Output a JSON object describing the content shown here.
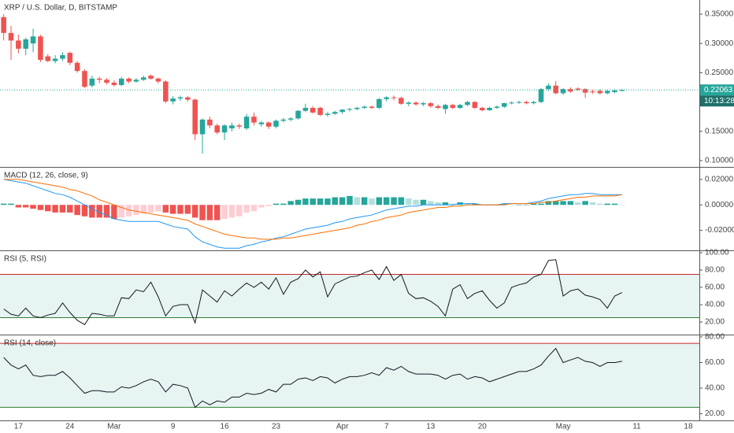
{
  "chart_data": [
    {
      "type": "candlestick",
      "title": "XRP / U.S. Dollar, D, BITSTAMP",
      "countdown": "10:13:28",
      "up_color": "#26a69a",
      "down_color": "#ef5350",
      "categories": [
        null,
        null,
        "17",
        null,
        null,
        null,
        null,
        null,
        null,
        "24",
        null,
        null,
        null,
        null,
        null,
        "Mar",
        null,
        null,
        null,
        null,
        null,
        null,
        null,
        "9",
        null,
        null,
        null,
        null,
        null,
        null,
        "16",
        null,
        null,
        null,
        null,
        null,
        null,
        "23",
        null,
        null,
        null,
        null,
        null,
        null,
        null,
        null,
        "Apr",
        null,
        null,
        null,
        null,
        null,
        "7",
        null,
        null,
        null,
        null,
        null,
        "13",
        null,
        null,
        null,
        null,
        null,
        null,
        "20",
        null,
        null,
        null,
        null,
        null,
        null,
        null,
        null,
        null,
        null,
        "May",
        null,
        null,
        null,
        null,
        null,
        null,
        null,
        null,
        null,
        "11",
        null,
        null,
        null,
        null,
        null,
        null,
        "18",
        null
      ],
      "open": [
        0.345,
        0.318,
        0.305,
        0.291,
        0.3,
        0.312,
        0.278,
        0.27,
        0.274,
        0.284,
        0.267,
        0.253,
        0.228,
        0.24,
        0.238,
        0.233,
        0.229,
        0.24,
        0.235,
        0.238,
        0.245,
        0.24,
        0.235,
        0.201,
        0.206,
        0.208,
        0.204,
        0.145,
        0.17,
        0.16,
        0.148,
        0.155,
        0.16,
        0.155,
        0.175,
        0.162,
        0.165,
        0.158,
        0.168,
        0.17,
        0.172,
        0.185,
        0.19,
        0.19,
        0.178,
        0.18,
        0.183,
        0.187,
        0.188,
        0.19,
        0.192,
        0.19,
        0.205,
        0.208,
        0.207,
        0.197,
        0.199,
        0.196,
        0.198,
        0.193,
        0.188,
        0.195,
        0.19,
        0.195,
        0.2,
        0.19,
        0.186,
        0.19,
        0.192,
        0.198,
        0.199,
        0.2,
        0.198,
        0.2,
        0.222,
        0.228,
        0.215,
        0.222,
        0.223,
        0.222,
        0.218,
        0.219,
        0.215,
        0.217,
        0.219,
        null,
        null,
        null,
        null,
        null,
        null,
        null,
        null,
        null,
        null
      ],
      "high": [
        0.35,
        0.33,
        0.315,
        0.31,
        0.325,
        0.315,
        0.282,
        0.28,
        0.285,
        0.286,
        0.27,
        0.256,
        0.245,
        0.243,
        0.241,
        0.237,
        0.243,
        0.242,
        0.241,
        0.245,
        0.247,
        0.242,
        0.237,
        0.21,
        0.211,
        0.21,
        0.206,
        0.172,
        0.175,
        0.163,
        0.162,
        0.165,
        0.163,
        0.18,
        0.182,
        0.168,
        0.167,
        0.17,
        0.173,
        0.174,
        0.186,
        0.197,
        0.193,
        0.192,
        0.183,
        0.185,
        0.188,
        0.19,
        0.192,
        0.194,
        0.194,
        0.207,
        0.21,
        0.211,
        0.209,
        0.201,
        0.201,
        0.2,
        0.2,
        0.196,
        0.197,
        0.197,
        0.197,
        0.202,
        0.202,
        0.192,
        0.192,
        0.194,
        0.199,
        0.201,
        0.202,
        0.202,
        0.202,
        0.224,
        0.232,
        0.236,
        0.224,
        0.225,
        0.225,
        0.224,
        0.221,
        0.222,
        0.221,
        0.222,
        0.222,
        null,
        null,
        null,
        null,
        null,
        null,
        null,
        null,
        null,
        null
      ],
      "low": [
        0.305,
        0.272,
        0.283,
        0.28,
        0.285,
        0.268,
        0.268,
        0.266,
        0.27,
        0.263,
        0.25,
        0.224,
        0.225,
        0.232,
        0.23,
        0.226,
        0.227,
        0.232,
        0.233,
        0.236,
        0.238,
        0.232,
        0.198,
        0.196,
        0.202,
        0.201,
        0.135,
        0.112,
        0.155,
        0.145,
        0.135,
        0.15,
        0.154,
        0.152,
        0.16,
        0.158,
        0.154,
        0.155,
        0.165,
        0.167,
        0.17,
        0.183,
        0.18,
        0.176,
        0.175,
        0.178,
        0.18,
        0.184,
        0.186,
        0.188,
        0.188,
        0.188,
        0.201,
        0.203,
        0.195,
        0.193,
        0.194,
        0.193,
        0.19,
        0.188,
        0.18,
        0.188,
        0.188,
        0.193,
        0.188,
        0.184,
        0.185,
        0.188,
        0.19,
        0.196,
        0.197,
        0.196,
        0.196,
        0.198,
        0.219,
        0.213,
        0.212,
        0.216,
        0.219,
        0.207,
        0.214,
        0.213,
        0.213,
        0.215,
        0.218,
        null,
        null,
        null,
        null,
        null,
        null,
        null,
        null,
        null,
        null
      ],
      "close": [
        0.318,
        0.305,
        0.291,
        0.307,
        0.312,
        0.272,
        0.27,
        0.274,
        0.28,
        0.267,
        0.253,
        0.226,
        0.24,
        0.238,
        0.233,
        0.229,
        0.24,
        0.235,
        0.238,
        0.242,
        0.24,
        0.235,
        0.201,
        0.206,
        0.208,
        0.204,
        0.145,
        0.17,
        0.16,
        0.148,
        0.16,
        0.16,
        0.158,
        0.175,
        0.165,
        0.165,
        0.158,
        0.168,
        0.17,
        0.172,
        0.185,
        0.19,
        0.182,
        0.178,
        0.18,
        0.183,
        0.187,
        0.188,
        0.19,
        0.192,
        0.19,
        0.205,
        0.208,
        0.207,
        0.197,
        0.199,
        0.196,
        0.198,
        0.193,
        0.19,
        0.195,
        0.19,
        0.195,
        0.2,
        0.19,
        0.186,
        0.19,
        0.192,
        0.198,
        0.199,
        0.2,
        0.198,
        0.2,
        0.222,
        0.228,
        0.215,
        0.222,
        0.218,
        0.221,
        0.216,
        0.217,
        0.215,
        0.219,
        0.22,
        0.22063,
        null,
        null,
        null,
        null,
        null,
        null,
        null,
        null,
        null,
        null
      ],
      "ylim": [
        0.0892,
        0.3742
      ],
      "yticks": [
        {
          "value": 0.35,
          "label": "0.35000"
        },
        {
          "value": 0.3,
          "label": "0.30000"
        },
        {
          "value": 0.25,
          "label": "0.25000"
        },
        {
          "value": 0.15,
          "label": "0.15000"
        },
        {
          "value": 0.1,
          "label": "0.10000"
        }
      ]
    },
    {
      "type": "macd",
      "title": "MACD (12, 26, close, 9)",
      "series": [
        {
          "color": "#2196f3",
          "values": [
            0.02,
            0.019,
            0.018,
            0.017,
            0.015,
            0.013,
            0.011,
            0.009,
            0.008,
            0.006,
            0.003,
            0.0,
            -0.003,
            -0.006,
            -0.008,
            -0.011,
            -0.012,
            -0.013,
            -0.013,
            -0.013,
            -0.013,
            -0.013,
            -0.015,
            -0.017,
            -0.018,
            -0.019,
            -0.025,
            -0.029,
            -0.031,
            -0.033,
            -0.034,
            -0.034,
            -0.034,
            -0.032,
            -0.031,
            -0.029,
            -0.028,
            -0.026,
            -0.025,
            -0.023,
            -0.021,
            -0.019,
            -0.018,
            -0.017,
            -0.016,
            -0.014,
            -0.013,
            -0.011,
            -0.01,
            -0.009,
            -0.008,
            -0.006,
            -0.004,
            -0.003,
            -0.002,
            -0.001,
            -0.001,
            0.0,
            0.0,
            0.0,
            0.0,
            0.0,
            0.001,
            0.001,
            0.001,
            0.0,
            0.0,
            0.0,
            0.001,
            0.001,
            0.001,
            0.001,
            0.002,
            0.003,
            0.005,
            0.006,
            0.007,
            0.008,
            0.008,
            0.009,
            0.009,
            0.008,
            0.008,
            0.008,
            0.008,
            null,
            null,
            null,
            null,
            null,
            null,
            null,
            null,
            null,
            null
          ]
        },
        {
          "color": "#ff6d00",
          "values": [
            0.02,
            0.02,
            0.02,
            0.019,
            0.018,
            0.017,
            0.016,
            0.015,
            0.014,
            0.012,
            0.011,
            0.009,
            0.007,
            0.004,
            0.002,
            0.0,
            -0.002,
            -0.004,
            -0.005,
            -0.006,
            -0.007,
            -0.008,
            -0.009,
            -0.01,
            -0.011,
            -0.012,
            -0.015,
            -0.017,
            -0.019,
            -0.021,
            -0.023,
            -0.024,
            -0.025,
            -0.026,
            -0.026,
            -0.027,
            -0.027,
            -0.027,
            -0.026,
            -0.026,
            -0.025,
            -0.024,
            -0.023,
            -0.022,
            -0.021,
            -0.02,
            -0.019,
            -0.018,
            -0.016,
            -0.015,
            -0.013,
            -0.012,
            -0.01,
            -0.009,
            -0.008,
            -0.006,
            -0.005,
            -0.004,
            -0.003,
            -0.002,
            -0.002,
            -0.001,
            -0.001,
            0.0,
            0.0,
            0.0,
            0.0,
            0.0,
            0.0,
            0.001,
            0.001,
            0.001,
            0.001,
            0.002,
            0.002,
            0.003,
            0.004,
            0.005,
            0.006,
            0.006,
            0.007,
            0.007,
            0.007,
            0.007,
            0.008,
            null,
            null,
            null,
            null,
            null,
            null,
            null,
            null,
            null,
            null
          ]
        }
      ],
      "histogram": {
        "values": [
          0.001,
          0.001,
          -0.002,
          -0.002,
          -0.003,
          -0.004,
          -0.005,
          -0.006,
          -0.006,
          -0.006,
          -0.008,
          -0.009,
          -0.01,
          -0.01,
          -0.01,
          -0.011,
          -0.01,
          -0.009,
          -0.008,
          -0.007,
          -0.006,
          -0.005,
          -0.006,
          -0.007,
          -0.007,
          -0.007,
          -0.01,
          -0.012,
          -0.012,
          -0.012,
          -0.011,
          -0.01,
          -0.009,
          -0.006,
          -0.005,
          -0.002,
          -0.001,
          0.001,
          0.001,
          0.003,
          0.004,
          0.005,
          0.005,
          0.005,
          0.005,
          0.006,
          0.006,
          0.007,
          0.006,
          0.006,
          0.005,
          0.006,
          0.006,
          0.006,
          0.006,
          0.005,
          0.004,
          0.004,
          0.003,
          0.002,
          0.002,
          0.001,
          0.002,
          0.001,
          0.001,
          0,
          0,
          0,
          0.001,
          0,
          0,
          0,
          0.001,
          0.001,
          0.003,
          0.003,
          0.003,
          0.003,
          0.002,
          0.003,
          0.002,
          0.001,
          0.001,
          0.001,
          0,
          null,
          null,
          null,
          null,
          null,
          null,
          null,
          null,
          null,
          null
        ],
        "up_color": "#26a69a",
        "up_fade_color": "#b2dfdb",
        "down_color": "#ef5350",
        "down_fade_color": "#ffcdd2"
      },
      "ylim": [
        -0.0357,
        0.0292
      ],
      "yticks": [
        {
          "value": 0.02,
          "label": "0.02000"
        },
        {
          "value": 0,
          "label": "0.00000"
        },
        {
          "value": -0.02,
          "label": "-0.02000"
        }
      ]
    },
    {
      "type": "rsi",
      "title": "RSI (5, RSI)",
      "color": "#131722",
      "values": [
        35,
        29,
        27,
        36,
        27,
        25,
        28,
        30,
        42,
        31,
        22,
        17,
        30,
        29,
        27,
        27,
        48,
        47,
        57,
        55,
        66,
        49,
        27,
        38,
        40,
        40,
        19,
        57,
        50,
        43,
        56,
        50,
        58,
        65,
        60,
        66,
        58,
        71,
        52,
        66,
        70,
        80,
        72,
        78,
        49,
        64,
        68,
        72,
        73,
        77,
        80,
        69,
        84,
        68,
        75,
        53,
        47,
        48,
        44,
        38,
        27,
        58,
        63,
        47,
        53,
        56,
        45,
        36,
        42,
        60,
        63,
        65,
        72,
        75,
        91,
        92,
        50,
        56,
        58,
        51,
        49,
        46,
        36,
        50,
        54,
        null,
        null,
        null,
        null,
        null,
        null,
        null,
        null,
        null,
        null
      ],
      "upper_band": 75,
      "lower_band": 25,
      "upper_color": "#c62828",
      "lower_color": "#2e7d32",
      "band_fill": "#e6f4f2",
      "ylim": [
        5.5,
        101.8
      ],
      "yticks": [
        {
          "value": 100,
          "label": "100.00"
        },
        {
          "value": 80,
          "label": "80.00"
        },
        {
          "value": 60,
          "label": "60.00"
        },
        {
          "value": 40,
          "label": "40.00"
        },
        {
          "value": 20,
          "label": "20.00"
        }
      ]
    },
    {
      "type": "rsi",
      "title": "RSI (14, close)",
      "color": "#131722",
      "values": [
        64,
        58,
        55,
        58,
        50,
        49,
        50,
        50,
        53,
        48,
        42,
        36,
        38,
        38,
        37,
        37,
        41,
        40,
        42,
        45,
        47,
        45,
        37,
        43,
        42,
        40,
        25,
        30,
        27,
        30,
        29,
        33,
        33,
        36,
        35,
        36,
        39,
        37,
        43,
        43,
        47,
        48,
        46,
        49,
        48,
        44,
        47,
        49,
        49,
        50,
        52,
        50,
        56,
        54,
        57,
        53,
        51,
        51,
        51,
        50,
        47,
        50,
        51,
        47,
        49,
        48,
        45,
        47,
        49,
        51,
        53,
        53,
        55,
        58,
        65,
        71,
        60,
        62,
        64,
        61,
        60,
        57,
        60,
        60,
        61,
        null,
        null,
        null,
        null,
        null,
        null,
        null,
        null,
        null,
        null
      ],
      "upper_band": 75,
      "lower_band": 25,
      "upper_color": "#c62828",
      "lower_color": "#2e7d32",
      "band_fill": "#e6f4f2",
      "ylim": [
        14.8,
        81.2
      ],
      "yticks": [
        {
          "value": 80,
          "label": "80.00"
        },
        {
          "value": 60,
          "label": "60.00"
        },
        {
          "value": 40,
          "label": "40.00"
        },
        {
          "value": 20,
          "label": "20.00"
        }
      ]
    }
  ]
}
